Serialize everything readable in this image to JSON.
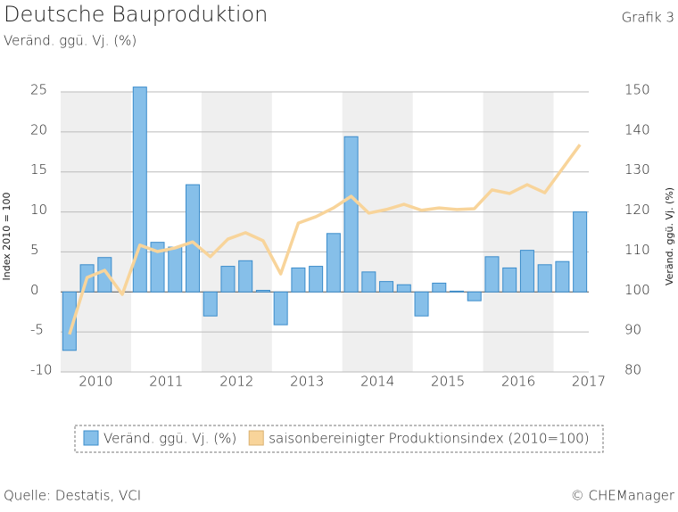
{
  "chart_data": {
    "type": "bar_line",
    "title": "Deutsche Bauproduktion",
    "subtitle": "Veränd. ggü. Vj. (%)",
    "label": "Grafik 3",
    "ylabel": "Index 2010 = 100",
    "y2label": "Veränd. ggü. Vj. (%)",
    "source": "Quelle: Destatis, VCI",
    "credit": "© CHEManager",
    "year_labels": [
      "2010",
      "2011",
      "2012",
      "2013",
      "2014",
      "2015",
      "2016",
      "2017"
    ],
    "ylim": [
      -10,
      25
    ],
    "yticks": [
      -10,
      -5,
      0,
      5,
      10,
      15,
      20,
      25
    ],
    "y2lim": [
      80,
      150
    ],
    "y2ticks": [
      80,
      90,
      100,
      110,
      120,
      130,
      140,
      150
    ],
    "grid": true,
    "series": [
      {
        "name": "Veränd. ggü. Vj. (%)",
        "color": "#86bfe9",
        "type": "bar",
        "values": [
          -7.3,
          3.4,
          4.3,
          0,
          25.6,
          6.2,
          5.6,
          13.4,
          -3.0,
          3.2,
          3.9,
          0.2,
          -4.1,
          3.0,
          3.2,
          7.3,
          19.4,
          2.5,
          1.3,
          0.9,
          -3.0,
          1.1,
          0.1,
          -1.1,
          4.4,
          3.0,
          5.2,
          3.4,
          3.8,
          10.0
        ]
      },
      {
        "name": "saisonbereinigter Produktionsindex (2010=100)",
        "color": "#f8d49a",
        "type": "line",
        "axis": "y2",
        "values": [
          89.4,
          103.6,
          105.4,
          99.4,
          111.7,
          110.1,
          111.0,
          112.5,
          108.8,
          113.2,
          114.8,
          112.8,
          104.5,
          117.2,
          118.8,
          121.0,
          123.9,
          119.7,
          120.6,
          121.9,
          120.4,
          121.0,
          120.6,
          120.8,
          125.5,
          124.6,
          126.8,
          124.8,
          130.8,
          136.8
        ]
      }
    ]
  }
}
